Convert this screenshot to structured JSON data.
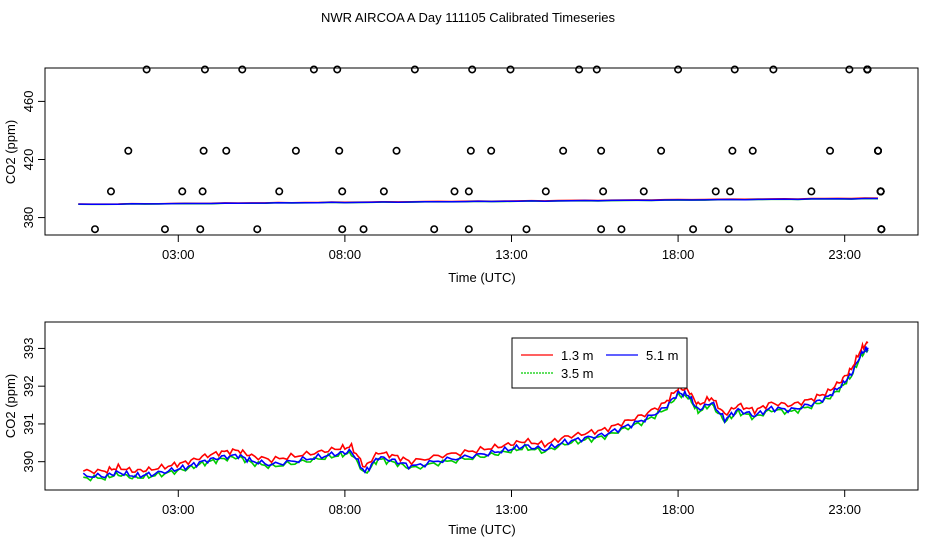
{
  "page_title": "NWR AIRCOA A  Day 111105  Calibrated Timeseries",
  "chart_data": [
    {
      "type": "scatter",
      "xlabel": "Time (UTC)",
      "ylabel": "CO2 (ppm)",
      "xlim": [
        -1,
        25.2
      ],
      "ylim": [
        368,
        483
      ],
      "xticks": [
        {
          "value": 3,
          "label": "03:00"
        },
        {
          "value": 8,
          "label": "08:00"
        },
        {
          "value": 13,
          "label": "13:00"
        },
        {
          "value": 18,
          "label": "18:00"
        },
        {
          "value": 23,
          "label": "23:00"
        }
      ],
      "yticks": [
        {
          "value": 380,
          "label": "380"
        },
        {
          "value": 420,
          "label": "420"
        },
        {
          "value": 460,
          "label": "460"
        }
      ],
      "calibration_points": {
        "y": [
          [
            372,
            372,
            372,
            372,
            372,
            372,
            372,
            372,
            372,
            372,
            372,
            372,
            372,
            372,
            372,
            372,
            372
          ],
          [
            398,
            398,
            398,
            398,
            398,
            398,
            398,
            398,
            398,
            398,
            398,
            398,
            398,
            398,
            398,
            398,
            398,
            398,
            398
          ],
          [
            426,
            426,
            426,
            426,
            426,
            426,
            426,
            426,
            426,
            426,
            426,
            426,
            426,
            426,
            426,
            426,
            426
          ],
          [
            482,
            482,
            482,
            482,
            482,
            482,
            482,
            482,
            482,
            482,
            482,
            482,
            482,
            482,
            482,
            482,
            482,
            482,
            482,
            482,
            482
          ]
        ],
        "x": [
          [
            0.5,
            2.6,
            3.66,
            5.37,
            7.92,
            8.56,
            10.68,
            11.72,
            13.45,
            15.69,
            16.3,
            18.45,
            19.52,
            21.34,
            24.1,
            24.1,
            24.1
          ],
          [
            0.98,
            3.12,
            3.73,
            6.03,
            7.92,
            9.17,
            11.29,
            11.72,
            14.03,
            15.75,
            16.97,
            19.13,
            19.56,
            22.0,
            24.08,
            24.08,
            24.08,
            24.08,
            24.08
          ],
          [
            1.5,
            3.76,
            4.44,
            6.53,
            7.83,
            9.55,
            11.78,
            12.39,
            14.55,
            15.69,
            17.49,
            19.63,
            20.24,
            22.56,
            24.0,
            24.0,
            24.0
          ],
          [
            2.05,
            3.8,
            4.92,
            7.07,
            7.77,
            10.1,
            11.82,
            12.97,
            15.03,
            15.56,
            18.0,
            19.7,
            20.86,
            23.14,
            23.68,
            23.68,
            23.68,
            23.68,
            23.68,
            23.68,
            23.68
          ]
        ]
      },
      "series": [
        {
          "name": "1.3 m",
          "color": "#ff0000",
          "x": [
            0,
            24
          ],
          "y": [
            389.2,
            393.4
          ]
        },
        {
          "name": "3.5 m",
          "color": "#00cc00",
          "x": [
            0,
            24
          ],
          "y": [
            389.0,
            393.0
          ]
        },
        {
          "name": "5.1 m",
          "color": "#0000ff",
          "x": [
            0,
            24
          ],
          "y": [
            389.1,
            393.1
          ]
        }
      ]
    },
    {
      "type": "line",
      "xlabel": "Time (UTC)",
      "ylabel": "CO2 (ppm)",
      "xlim": [
        -1,
        25.2
      ],
      "ylim": [
        389.25,
        393.7
      ],
      "xticks": [
        {
          "value": 3,
          "label": "03:00"
        },
        {
          "value": 8,
          "label": "08:00"
        },
        {
          "value": 13,
          "label": "13:00"
        },
        {
          "value": 18,
          "label": "18:00"
        },
        {
          "value": 23,
          "label": "23:00"
        }
      ],
      "yticks": [
        {
          "value": 390,
          "label": "390"
        },
        {
          "value": 391,
          "label": "391"
        },
        {
          "value": 392,
          "label": "392"
        },
        {
          "value": 393,
          "label": "393"
        }
      ],
      "legend": {
        "position": "top-right",
        "entries": [
          "1.3 m",
          "5.1 m",
          "3.5 m"
        ]
      },
      "series": [
        {
          "name": "1.3 m",
          "color": "#ff0000",
          "offset": 0.15,
          "x": [
            0.15,
            0.8,
            1.2,
            1.7,
            2.2,
            2.8,
            3.3,
            3.8,
            4.3,
            4.8,
            5.2,
            5.8,
            6.5,
            7.2,
            7.8,
            8.2,
            8.6,
            9.0,
            9.5,
            10.0,
            10.8,
            11.6,
            12.3,
            12.9,
            13.4,
            14.0,
            14.6,
            15.2,
            15.8,
            16.4,
            17.0,
            17.6,
            18.0,
            18.3,
            18.6,
            19.0,
            19.4,
            19.8,
            20.3,
            20.8,
            21.4,
            22.0,
            22.5,
            22.9,
            23.2,
            23.5,
            23.7
          ],
          "y": [
            389.6,
            389.6,
            389.7,
            389.6,
            389.65,
            389.75,
            389.85,
            390.0,
            390.1,
            390.15,
            390.0,
            389.9,
            390.0,
            390.1,
            390.2,
            390.25,
            389.7,
            390.1,
            390.0,
            389.85,
            390.0,
            390.1,
            390.2,
            390.3,
            390.4,
            390.3,
            390.5,
            390.6,
            390.7,
            390.9,
            391.1,
            391.4,
            391.8,
            391.75,
            391.35,
            391.55,
            391.1,
            391.35,
            391.2,
            391.4,
            391.35,
            391.5,
            391.7,
            392.0,
            392.3,
            392.85,
            393.0
          ]
        },
        {
          "name": "5.1 m",
          "color": "#0000ff",
          "offset": 0.02,
          "x": [
            0.15,
            0.8,
            1.2,
            1.7,
            2.2,
            2.8,
            3.3,
            3.8,
            4.3,
            4.8,
            5.2,
            5.8,
            6.5,
            7.2,
            7.8,
            8.2,
            8.6,
            9.0,
            9.5,
            10.0,
            10.8,
            11.6,
            12.3,
            12.9,
            13.4,
            14.0,
            14.6,
            15.2,
            15.8,
            16.4,
            17.0,
            17.6,
            18.0,
            18.3,
            18.6,
            19.0,
            19.4,
            19.8,
            20.3,
            20.8,
            21.4,
            22.0,
            22.5,
            22.9,
            23.2,
            23.5,
            23.7
          ],
          "y": [
            389.6,
            389.6,
            389.7,
            389.6,
            389.65,
            389.75,
            389.85,
            390.0,
            390.1,
            390.15,
            390.0,
            389.9,
            390.0,
            390.1,
            390.2,
            390.25,
            389.7,
            390.1,
            390.0,
            389.85,
            390.0,
            390.1,
            390.2,
            390.3,
            390.4,
            390.3,
            390.5,
            390.6,
            390.7,
            390.9,
            391.1,
            391.4,
            391.8,
            391.75,
            391.35,
            391.55,
            391.1,
            391.35,
            391.2,
            391.4,
            391.35,
            391.5,
            391.7,
            392.0,
            392.3,
            392.85,
            393.0
          ]
        },
        {
          "name": "3.5 m",
          "color": "#00cc00",
          "offset": -0.03,
          "x": [
            0.15,
            0.8,
            1.2,
            1.7,
            2.2,
            2.8,
            3.3,
            3.8,
            4.3,
            4.8,
            5.2,
            5.8,
            6.5,
            7.2,
            7.8,
            8.2,
            8.6,
            9.0,
            9.5,
            10.0,
            10.8,
            11.6,
            12.3,
            12.9,
            13.4,
            14.0,
            14.6,
            15.2,
            15.8,
            16.4,
            17.0,
            17.6,
            18.0,
            18.3,
            18.6,
            19.0,
            19.4,
            19.8,
            20.3,
            20.8,
            21.4,
            22.0,
            22.5,
            22.9,
            23.2,
            23.5,
            23.7
          ],
          "y": [
            389.6,
            389.6,
            389.7,
            389.6,
            389.65,
            389.75,
            389.85,
            390.0,
            390.1,
            390.15,
            390.0,
            389.9,
            390.0,
            390.1,
            390.2,
            390.25,
            389.7,
            390.1,
            390.0,
            389.85,
            390.0,
            390.1,
            390.2,
            390.3,
            390.4,
            390.3,
            390.5,
            390.6,
            390.7,
            390.9,
            391.1,
            391.4,
            391.8,
            391.75,
            391.35,
            391.55,
            391.1,
            391.35,
            391.2,
            391.4,
            391.35,
            391.5,
            391.7,
            392.0,
            392.3,
            392.85,
            393.0
          ]
        }
      ]
    }
  ]
}
